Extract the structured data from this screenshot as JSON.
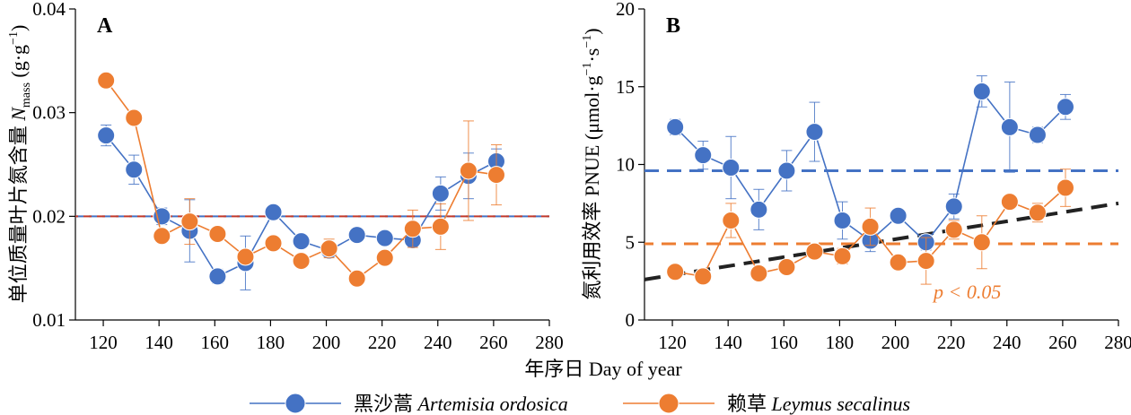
{
  "chart_data": [
    {
      "type": "line",
      "panel": "A",
      "ylabel": "单位质量叶片氮含量 N_mass (g·g⁻¹)",
      "ylabel_prefix": "单位质量叶片氮含量 ",
      "ylabel_symbol": "N",
      "ylabel_subscript": "mass",
      "ylabel_unit": " (g·g",
      "ylabel_unit_sup": "−1",
      "ylabel_unit_end": ")",
      "xlim": [
        110,
        280
      ],
      "ylim": [
        0.01,
        0.04
      ],
      "xticks": [
        120,
        140,
        160,
        180,
        200,
        220,
        240,
        260,
        280
      ],
      "yticks": [
        0.01,
        0.02,
        0.03,
        0.04
      ],
      "ytick_labels": [
        "0.01",
        "0.02",
        "0.03",
        "0.04"
      ],
      "x": [
        121,
        131,
        141,
        151,
        161,
        171,
        181,
        191,
        201,
        211,
        221,
        231,
        241,
        251,
        261
      ],
      "series": [
        {
          "name": "黑沙蒿 Artemisia ordosica",
          "color": "#4472c4",
          "y": [
            0.0278,
            0.0245,
            0.02,
            0.0186,
            0.0142,
            0.0155,
            0.0204,
            0.0176,
            0.0167,
            0.0182,
            0.0179,
            0.0177,
            0.0222,
            0.0239,
            0.0253
          ],
          "err": [
            0.001,
            0.0014,
            0.0008,
            0.003,
            0.0007,
            0.0026,
            0.0004,
            0.0004,
            0.0004,
            0.0003,
            0.0004,
            0.0005,
            0.0016,
            0.0022,
            0.0012
          ]
        },
        {
          "name": "赖草 Leymus secalinus",
          "color": "#ed7d31",
          "y": [
            0.0331,
            0.0295,
            0.0181,
            0.0195,
            0.0183,
            0.0161,
            0.0174,
            0.0157,
            0.0169,
            0.014,
            0.016,
            0.0188,
            0.019,
            0.0244,
            0.024
          ],
          "err": [
            0.0004,
            0.0006,
            0.0004,
            0.0022,
            0.0006,
            0.0003,
            0.0003,
            0.0003,
            0.0009,
            0.0003,
            0.0004,
            0.0018,
            0.0022,
            0.0048,
            0.0029
          ]
        }
      ],
      "mean_lines": [
        {
          "series": "黑沙蒿 Artemisia ordosica",
          "y": 0.02,
          "color": "#4472c4"
        },
        {
          "series": "赖草 Leymus secalinus",
          "y": 0.02,
          "color": "#c0392b"
        }
      ]
    },
    {
      "type": "line",
      "panel": "B",
      "ylabel": "氮利用效率 PNUE (μmol·g⁻¹·s⁻¹)",
      "ylabel_prefix": "氮利用效率 PNUE (μmol·g",
      "ylabel_sup1": "−1",
      "ylabel_mid": "·s",
      "ylabel_sup2": "−1",
      "ylabel_end": ")",
      "xlim": [
        110,
        280
      ],
      "ylim": [
        0,
        20
      ],
      "xticks": [
        120,
        140,
        160,
        180,
        200,
        220,
        240,
        260,
        280
      ],
      "yticks": [
        0,
        5,
        10,
        15,
        20
      ],
      "ytick_labels": [
        "0",
        "5",
        "10",
        "15",
        "20"
      ],
      "x": [
        121,
        131,
        141,
        151,
        161,
        171,
        181,
        191,
        201,
        211,
        221,
        231,
        241,
        251,
        261
      ],
      "series": [
        {
          "name": "黑沙蒿 Artemisia ordosica",
          "color": "#4472c4",
          "y": [
            12.4,
            10.6,
            9.8,
            7.1,
            9.6,
            12.1,
            6.4,
            5.1,
            6.7,
            5.0,
            7.3,
            14.7,
            12.4,
            11.9,
            13.7
          ],
          "err": [
            0.5,
            0.9,
            2.0,
            1.3,
            1.3,
            1.9,
            1.2,
            0.7,
            0.4,
            0.5,
            0.8,
            1.0,
            2.9,
            0.5,
            0.8
          ]
        },
        {
          "name": "赖草 Leymus secalinus",
          "color": "#ed7d31",
          "y": [
            3.1,
            2.8,
            6.4,
            3.0,
            3.4,
            4.4,
            4.1,
            6.0,
            3.7,
            3.8,
            5.8,
            5.0,
            7.6,
            6.9,
            8.5
          ],
          "err": [
            0.3,
            0.4,
            1.1,
            0.3,
            0.3,
            0.4,
            0.5,
            1.2,
            0.3,
            1.5,
            0.6,
            1.7,
            0.4,
            0.6,
            1.2
          ]
        }
      ],
      "mean_lines": [
        {
          "series": "黑沙蒿 Artemisia ordosica",
          "y": 9.6,
          "color": "#4472c4"
        },
        {
          "series": "赖草 Leymus secalinus",
          "y": 4.9,
          "color": "#ed7d31"
        }
      ],
      "trend_line": {
        "series": "赖草 Leymus secalinus",
        "x": [
          110,
          280
        ],
        "y": [
          2.6,
          7.5
        ],
        "color": "#222222"
      },
      "annotation": "p < 0.05"
    }
  ],
  "xlabel": "年序日 Day of year",
  "legend": {
    "placement": "bottom",
    "items": [
      {
        "zh": "黑沙蒿 ",
        "latin": "Artemisia ordosica",
        "color": "#4472c4"
      },
      {
        "zh": "赖草 ",
        "latin": "Leymus secalinus",
        "color": "#ed7d31"
      }
    ]
  }
}
